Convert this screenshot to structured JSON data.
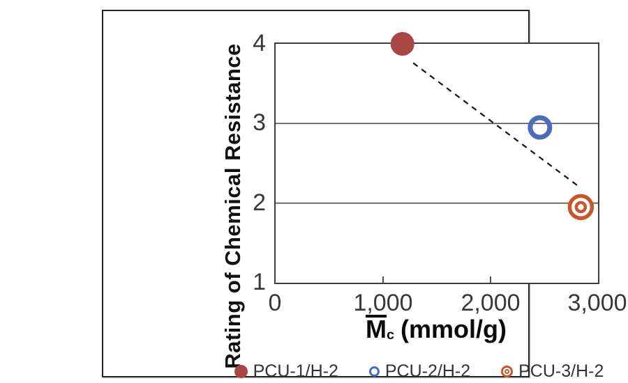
{
  "chart_data": {
    "type": "scatter",
    "title": "",
    "ylabel": "Rating of Chemical Resistance",
    "xlabel": {
      "symbol": "M",
      "subscript": "c",
      "unit": "(mmol/g)"
    },
    "xlim": [
      0,
      3000
    ],
    "ylim": [
      1,
      4
    ],
    "x_ticks": [
      {
        "value": 0,
        "label": "0"
      },
      {
        "value": 1000,
        "label": "1,000"
      },
      {
        "value": 2000,
        "label": "2,000"
      },
      {
        "value": 3000,
        "label": "3,000"
      }
    ],
    "y_ticks": [
      {
        "value": 4,
        "label": "4"
      },
      {
        "value": 3,
        "label": "3"
      },
      {
        "value": 2,
        "label": "2"
      },
      {
        "value": 1,
        "label": "1"
      }
    ],
    "grid": "horizontal",
    "grid_color": "#4d4d4d",
    "axis_color": "#3d3d3d",
    "series": [
      {
        "name": "PCU-1/H-2",
        "marker": "filled-circle",
        "color": "#A94745",
        "points": [
          [
            1180,
            4.0
          ]
        ]
      },
      {
        "name": "PCU-2/H-2",
        "marker": "open-circle",
        "color": "#4A6DB7",
        "points": [
          [
            2460,
            2.95
          ]
        ]
      },
      {
        "name": "PCU-3/H-2",
        "marker": "double-circle",
        "color": "#C7572F",
        "points": [
          [
            2840,
            1.95
          ]
        ]
      }
    ],
    "trendline": {
      "style": "dashed",
      "color": "#1a1a1a",
      "from": [
        1280,
        3.76
      ],
      "to": [
        2830,
        2.2
      ]
    },
    "legend_position": "bottom"
  }
}
